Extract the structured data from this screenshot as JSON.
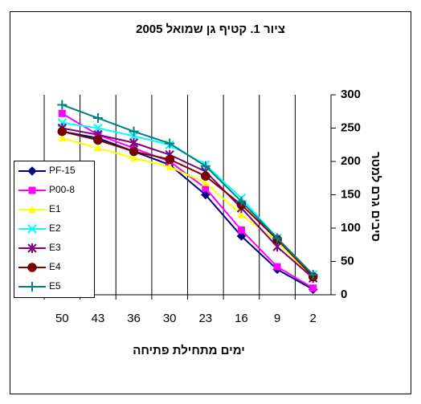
{
  "chart_data": {
    "type": "line",
    "title": "ציור 1. קטיף גן שמואל 2005",
    "x_label": "ימים מתחילת פתיחה",
    "y_label": "סיבים גרם למטר",
    "categories": [
      "50",
      "43",
      "36",
      "30",
      "23",
      "16",
      "9",
      "2"
    ],
    "ylim": [
      0,
      300
    ],
    "yticks": [
      0,
      50,
      100,
      150,
      200,
      250,
      300
    ],
    "y_axis_side": "right",
    "grid": "vertical",
    "legend": "left",
    "series": [
      {
        "name": "PF-15",
        "color": "#000080",
        "marker": "diamond",
        "values": [
          245,
          235,
          215,
          195,
          150,
          88,
          38,
          8
        ]
      },
      {
        "name": "P00-8",
        "color": "#ff00ff",
        "marker": "square",
        "values": [
          272,
          240,
          220,
          200,
          160,
          97,
          42,
          10
        ]
      },
      {
        "name": "E1",
        "color": "#ffff00",
        "marker": "triangle",
        "values": [
          235,
          220,
          205,
          192,
          168,
          120,
          80,
          25
        ]
      },
      {
        "name": "E2",
        "color": "#00ffff",
        "marker": "x",
        "values": [
          258,
          250,
          238,
          225,
          195,
          145,
          85,
          30
        ]
      },
      {
        "name": "E3",
        "color": "#800080",
        "marker": "star",
        "values": [
          250,
          240,
          228,
          210,
          185,
          130,
          72,
          25
        ]
      },
      {
        "name": "E4",
        "color": "#800000",
        "marker": "circle",
        "values": [
          245,
          232,
          215,
          203,
          178,
          135,
          83,
          27
        ]
      },
      {
        "name": "E5",
        "color": "#008080",
        "marker": "plus",
        "values": [
          285,
          265,
          245,
          227,
          193,
          140,
          85,
          30
        ]
      }
    ]
  }
}
